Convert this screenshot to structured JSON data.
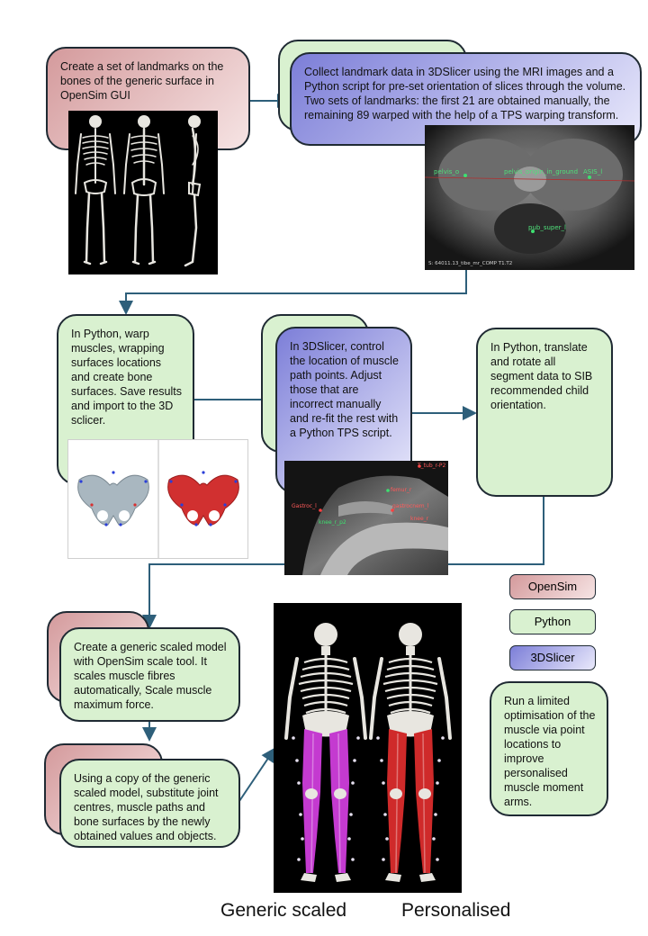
{
  "steps": {
    "s1": "Create a set of landmarks on the bones of the generic surface in OpenSim GUI",
    "s2": "Collect landmark data in 3DSlicer using the MRI images and a Python script for pre-set orientation of slices through the volume. Two sets of landmarks: the first 21 are obtained manually, the remaining 89 warped with the help of a TPS warping transform.",
    "s3": "In Python, warp muscles, wrapping surfaces locations and create bone surfaces. Save results and import to the 3D sclicer.",
    "s4": "In 3DSlicer, control the location of muscle path points. Adjust those that are incorrect manually and re-fit the rest with a Python TPS script.",
    "s5": "In Python, translate and rotate all segment data to SIB recommended child orientation.",
    "s6": "Create a generic scaled model with OpenSim scale tool. It scales muscle fibres automatically, Scale muscle maximum force.",
    "s7": "Using a copy of the generic scaled model, substitute joint centres, muscle paths and bone surfaces by the newly obtained values and objects.",
    "s8": "Run a limited optimisation of the muscle via point locations to improve personalised muscle moment arms."
  },
  "mri_labels": {
    "pelvis": [
      "pelvis_origin_in_ground",
      "ASIS_l",
      "pub_super_l",
      "S: 64011.13_tibe_mr_COMP T1.T2"
    ],
    "knee": [
      "T_tub_r-P2",
      "Gastroc_l",
      "femur_r",
      "gastrocnem_l",
      "knee_r",
      "knee_r_p2"
    ]
  },
  "legend": [
    {
      "label": "OpenSim",
      "color": "#e8c4c4"
    },
    {
      "label": "Python",
      "color": "#d9f1d0"
    },
    {
      "label": "3DSlicer",
      "color": "#8f91e0"
    }
  ],
  "captions": {
    "generic": "Generic scaled",
    "personalised": "Personalised"
  },
  "colors": {
    "arrow": "#2e5f7a",
    "muscle_generic": "#c43ad0",
    "muscle_personal": "#cf2a2a",
    "bone": "#e8e6e0"
  }
}
